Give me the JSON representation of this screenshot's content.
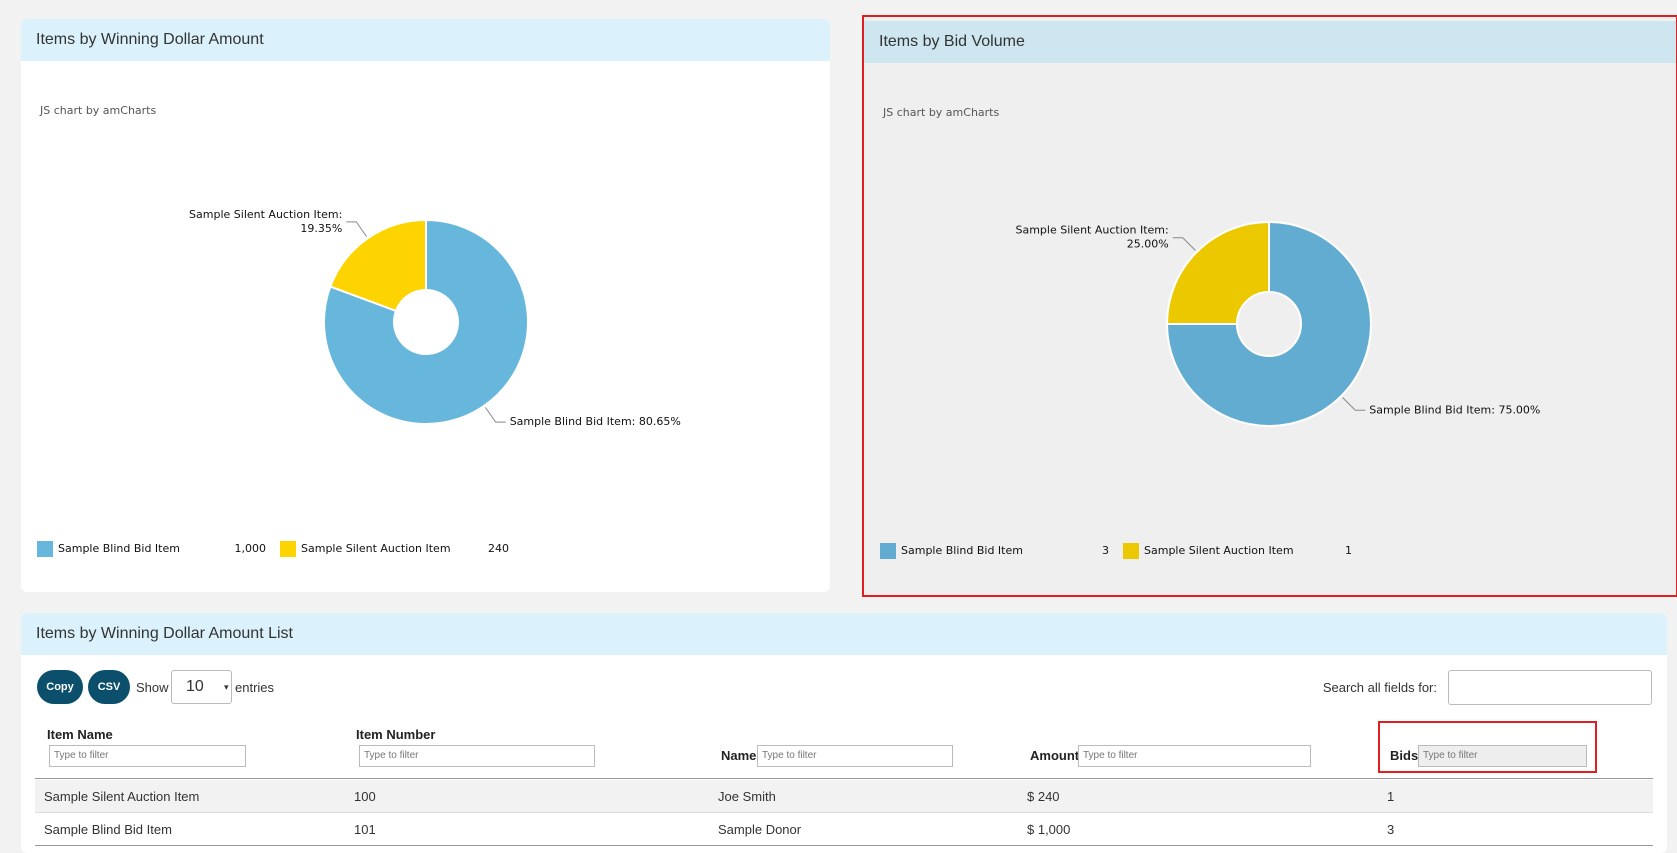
{
  "chart_data": [
    {
      "type": "pie",
      "title": "Items by Winning Dollar Amount",
      "credit": "JS chart by amCharts",
      "categories": [
        "Sample Blind Bid Item",
        "Sample Silent Auction Item"
      ],
      "values": [
        1000,
        240
      ],
      "value_labels": [
        "1,000",
        "240"
      ],
      "slice_labels": [
        [
          "Sample Blind Bid Item: 80.65%"
        ],
        [
          "Sample Silent Auction Item:",
          "19.35%"
        ]
      ],
      "colors": [
        "#67b7dc",
        "#fdd400"
      ],
      "legend": "bottom"
    },
    {
      "type": "pie",
      "title": "Items by Bid Volume",
      "credit": "JS chart by amCharts",
      "categories": [
        "Sample Blind Bid Item",
        "Sample Silent Auction Item"
      ],
      "values": [
        3,
        1
      ],
      "slice_labels": [
        [
          "Sample Blind Bid Item: 75.00%"
        ],
        [
          "Sample Silent Auction Item:",
          "25.00%"
        ]
      ],
      "colors": [
        "#62abd1",
        "#ecc800"
      ],
      "legend": "bottom"
    }
  ],
  "table_panel": {
    "title": "Items by Winning Dollar Amount List",
    "buttons": [
      "Copy",
      "CSV"
    ],
    "show_label": "Show",
    "page_size": "10",
    "entries_label": "entries",
    "search_label": "Search all fields for:",
    "filter_placeholder": "Type to filter",
    "columns": [
      "Item Name",
      "Item Number",
      "Name",
      "Amount",
      "Bids"
    ],
    "rows": [
      [
        "Sample Silent Auction Item",
        "100",
        "Joe Smith",
        "$ 240",
        "1"
      ],
      [
        "Sample Blind Bid Item",
        "101",
        "Sample Donor",
        "$ 1,000",
        "3"
      ]
    ]
  }
}
